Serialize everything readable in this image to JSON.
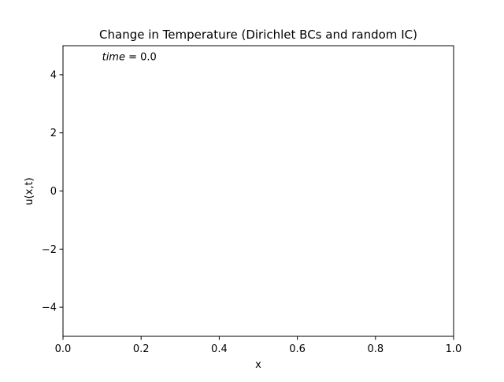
{
  "chart_data": {
    "type": "line",
    "title": "Change in Temperature (Dirichlet BCs and random IC)",
    "xlabel": "x",
    "ylabel": "u(x,t)",
    "xlim": [
      0.0,
      1.0
    ],
    "ylim": [
      -5,
      5
    ],
    "xticks": [
      0.0,
      0.2,
      0.4,
      0.6,
      0.8,
      1.0
    ],
    "xtick_labels": [
      "0.0",
      "0.2",
      "0.4",
      "0.6",
      "0.8",
      "1.0"
    ],
    "yticks": [
      -4,
      -2,
      0,
      2,
      4
    ],
    "ytick_labels": [
      "−4",
      "−2",
      "0",
      "2",
      "4"
    ],
    "series": [],
    "grid": false,
    "annotations": [
      {
        "text_italic": "time",
        "text": " = 0.0",
        "x": 0.1,
        "y": 4.5
      }
    ]
  }
}
